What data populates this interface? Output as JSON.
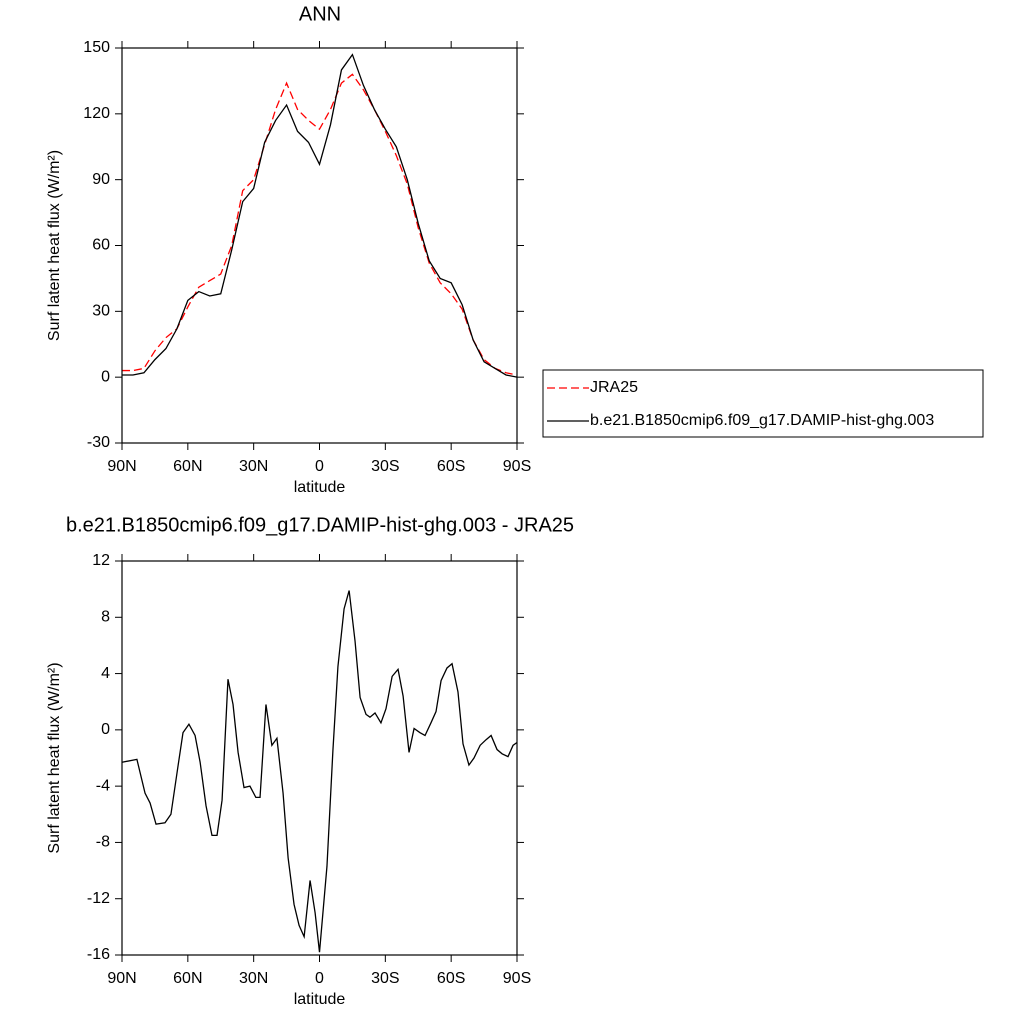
{
  "chart_data": [
    {
      "type": "line",
      "title": "ANN",
      "xlabel": "latitude",
      "ylabel": "Surf latent heat flux (W/m²)",
      "x": [
        90,
        85,
        80,
        75,
        70,
        65,
        60,
        55,
        50,
        45,
        40,
        35,
        30,
        25,
        20,
        15,
        10,
        5,
        0,
        -5,
        -10,
        -15,
        -20,
        -25,
        -30,
        -35,
        -40,
        -45,
        -50,
        -55,
        -60,
        -65,
        -70,
        -75,
        -80,
        -85,
        -90
      ],
      "series": [
        {
          "name": "JRA25",
          "color": "#ff0000",
          "dash": true,
          "values": [
            3,
            3,
            4,
            12,
            18,
            22,
            32,
            41,
            44,
            47,
            60,
            85,
            90,
            106,
            122,
            134,
            122,
            117,
            113,
            122,
            134,
            138,
            131,
            122,
            112,
            101,
            88,
            68,
            52,
            43,
            38,
            31,
            17,
            8,
            4,
            2,
            1
          ]
        },
        {
          "name": "b.e21.B1850cmip6.f09_g17.DAMIP-hist-ghg.003",
          "color": "#000000",
          "dash": false,
          "values": [
            1,
            1,
            2,
            8,
            13,
            22,
            35,
            39,
            37,
            38,
            58,
            80,
            86,
            107,
            117,
            124,
            112,
            107,
            97,
            115,
            140,
            147,
            133,
            122,
            113,
            105,
            90,
            70,
            53,
            45,
            43,
            33,
            17,
            7,
            4,
            1,
            0
          ]
        }
      ],
      "xlim": [
        90,
        -90
      ],
      "xticks": [
        {
          "value": 90,
          "label": "90N"
        },
        {
          "value": 60,
          "label": "60N"
        },
        {
          "value": 30,
          "label": "30N"
        },
        0,
        {
          "value": -30,
          "label": "30S"
        },
        {
          "value": -60,
          "label": "60S"
        },
        {
          "value": -90,
          "label": "90S"
        }
      ],
      "ylim": [
        -30,
        150
      ],
      "yticks": [
        -30,
        0,
        30,
        60,
        90,
        120,
        150
      ],
      "legend": "right"
    },
    {
      "type": "line",
      "title": "b.e21.B1850cmip6.f09_g17.DAMIP-hist-ghg.003 - JRA25",
      "xlabel": "latitude",
      "ylabel": "Surf latent heat flux (W/m²)",
      "x": [
        90,
        83.2,
        79.5,
        77.2,
        74.5,
        70.4,
        67.7,
        64.5,
        62.2,
        59.5,
        56.7,
        54.4,
        51.7,
        49.0,
        46.7,
        44.4,
        41.7,
        39.4,
        37.1,
        34.4,
        31.7,
        29.0,
        27.1,
        24.4,
        21.7,
        19.4,
        16.6,
        14.3,
        11.6,
        9.3,
        7.0,
        4.3,
        2.0,
        0,
        -3.4,
        -6.1,
        -8.4,
        -11.2,
        -13.5,
        -16.2,
        -18.5,
        -21.2,
        -23.0,
        -25.3,
        -28.0,
        -30.3,
        -33.1,
        -35.8,
        -38.1,
        -40.8,
        -43.1,
        -45.8,
        -48.1,
        -50.8,
        -53.1,
        -55.4,
        -58.1,
        -60.4,
        -63.1,
        -65.4,
        -68.1,
        -70.4,
        -73.2,
        -75.9,
        -78.2,
        -80.9,
        -83.2,
        -85.9,
        -88.2,
        -90
      ],
      "values": [
        -2.3,
        -2.1,
        -4.5,
        -5.2,
        -6.7,
        -6.6,
        -6.0,
        -2.6,
        -0.2,
        0.4,
        -0.4,
        -2.3,
        -5.4,
        -7.5,
        -7.5,
        -5.0,
        3.6,
        1.8,
        -1.6,
        -4.1,
        -4.0,
        -4.8,
        -4.8,
        1.8,
        -1.1,
        -0.6,
        -4.5,
        -9.1,
        -12.4,
        -13.9,
        -14.7,
        -10.7,
        -13.0,
        -15.8,
        -9.7,
        -1.5,
        4.5,
        8.6,
        9.9,
        6.3,
        2.3,
        1.1,
        0.9,
        1.2,
        0.5,
        1.5,
        3.8,
        4.3,
        2.4,
        -1.6,
        0.1,
        -0.2,
        -0.4,
        0.5,
        1.3,
        3.5,
        4.4,
        4.7,
        2.7,
        -1.0,
        -2.5,
        -2.0,
        -1.1,
        -0.7,
        -0.4,
        -1.4,
        -1.7,
        -1.9,
        -1.1,
        -0.9
      ],
      "color": "#000000",
      "xlim": [
        90,
        -90
      ],
      "xticks": [
        {
          "value": 90,
          "label": "90N"
        },
        {
          "value": 60,
          "label": "60N"
        },
        {
          "value": 30,
          "label": "30N"
        },
        0,
        {
          "value": -30,
          "label": "30S"
        },
        {
          "value": -60,
          "label": "60S"
        },
        {
          "value": -90,
          "label": "90S"
        }
      ],
      "ylim": [
        -16,
        12
      ],
      "yticks": [
        -16,
        -12,
        -8,
        -4,
        0,
        4,
        8,
        12
      ]
    }
  ]
}
